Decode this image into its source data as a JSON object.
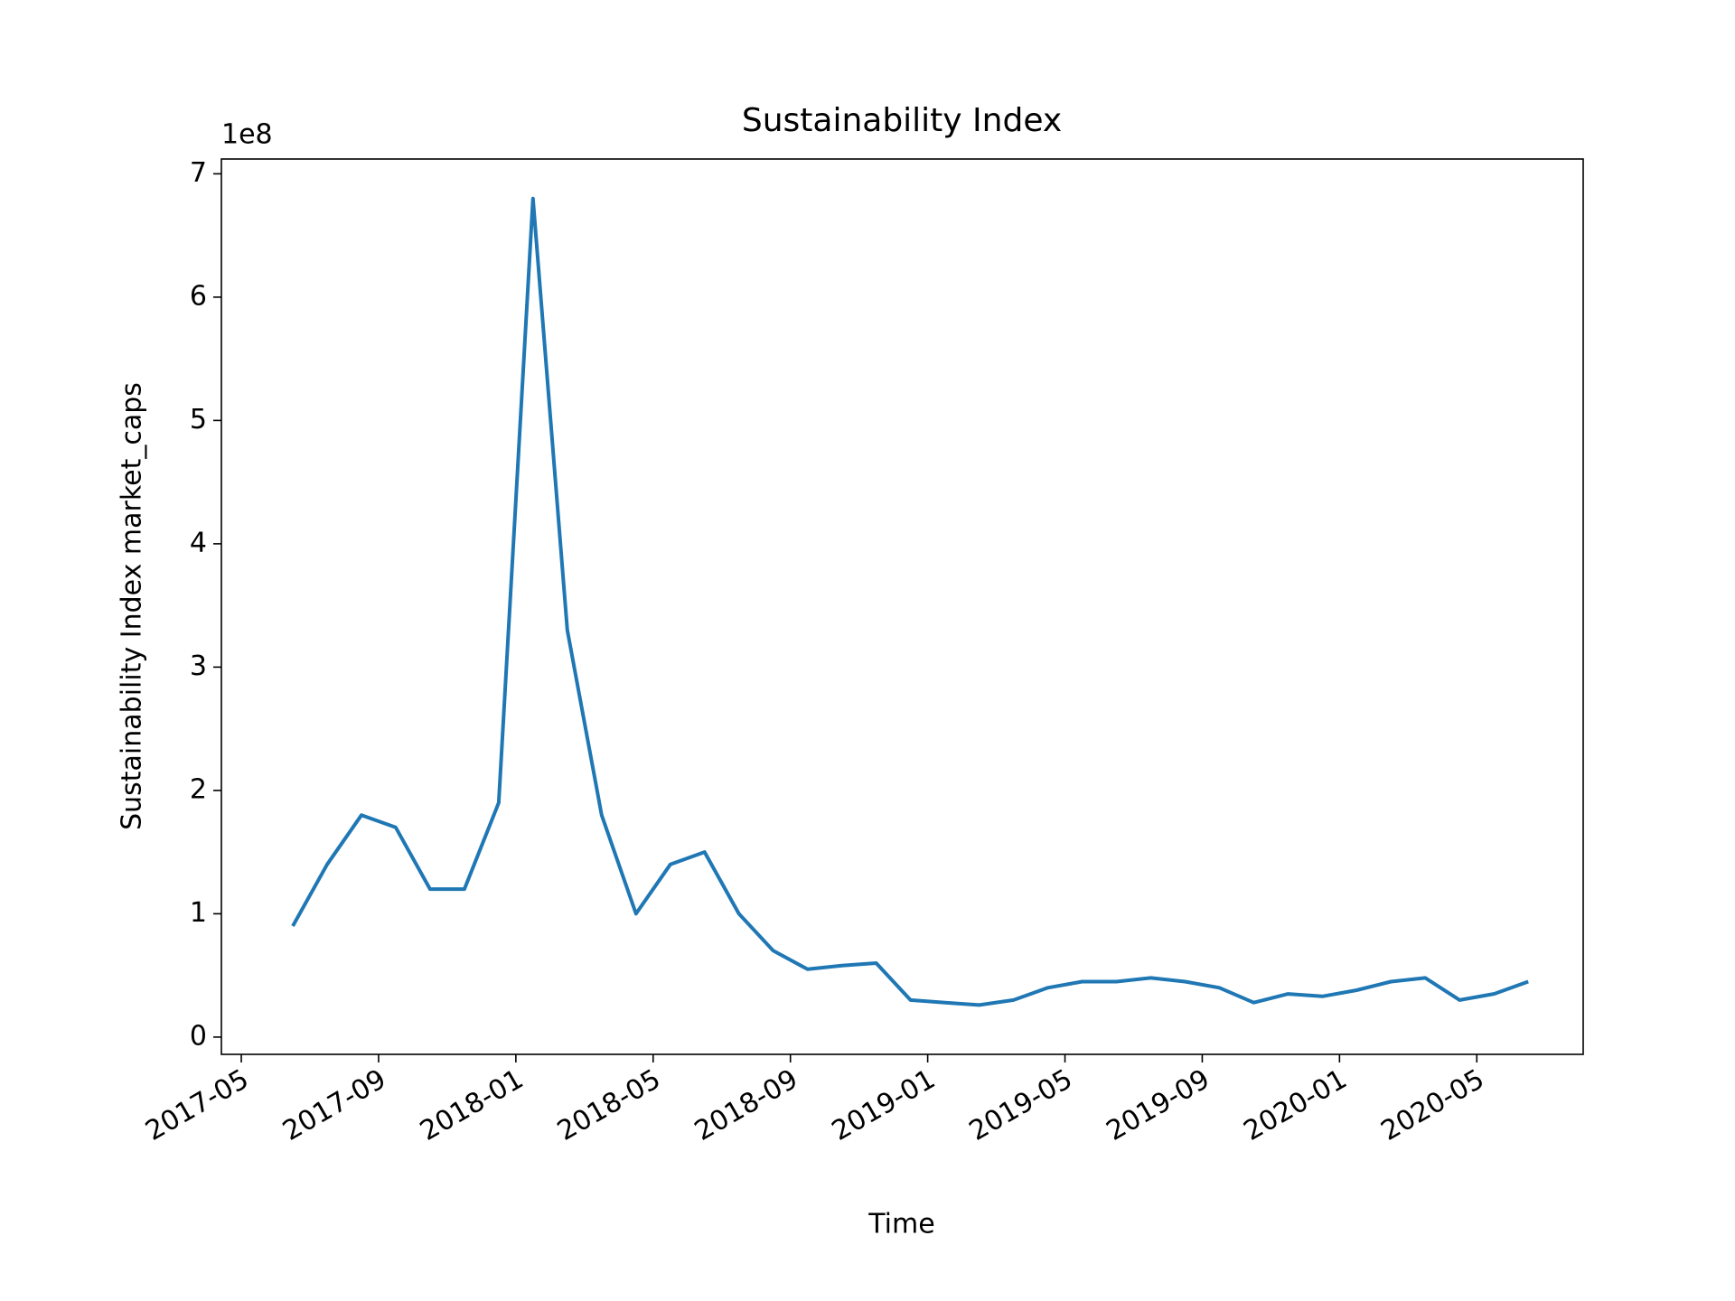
{
  "chart_data": {
    "type": "line",
    "title": "Sustainability Index",
    "x_label": "Time",
    "y_label": "Sustainability Index market_caps",
    "y_offset_label": "1e8",
    "x": [
      "2017-06",
      "2017-07",
      "2017-08",
      "2017-09",
      "2017-10",
      "2017-11",
      "2017-12",
      "2018-01",
      "2018-02",
      "2018-03",
      "2018-04",
      "2018-05",
      "2018-06",
      "2018-07",
      "2018-08",
      "2018-09",
      "2018-10",
      "2018-11",
      "2018-12",
      "2019-01",
      "2019-02",
      "2019-03",
      "2019-04",
      "2019-05",
      "2019-06",
      "2019-07",
      "2019-08",
      "2019-09",
      "2019-10",
      "2019-11",
      "2019-12",
      "2020-01",
      "2020-02",
      "2020-03",
      "2020-04",
      "2020-05",
      "2020-06"
    ],
    "series": [
      {
        "name": "Sustainability Index",
        "color": "#1f77b4",
        "values": [
          90000000,
          140000000,
          180000000,
          170000000,
          120000000,
          120000000,
          190000000,
          680000000,
          330000000,
          180000000,
          100000000,
          140000000,
          150000000,
          100000000,
          70000000,
          55000000,
          58000000,
          60000000,
          30000000,
          28000000,
          26000000,
          30000000,
          40000000,
          45000000,
          45000000,
          48000000,
          45000000,
          40000000,
          28000000,
          35000000,
          33000000,
          38000000,
          45000000,
          48000000,
          30000000,
          35000000,
          45000000
        ]
      }
    ],
    "xlim": [
      "2017-04",
      "2020-08"
    ],
    "xticks": [
      "2017-05",
      "2017-09",
      "2018-01",
      "2018-05",
      "2018-09",
      "2019-01",
      "2019-05",
      "2019-09",
      "2020-01",
      "2020-05"
    ],
    "ylim": [
      -14000000,
      712000000
    ],
    "yticks": [
      {
        "value": 0,
        "label": "0"
      },
      {
        "value": 100000000,
        "label": "1"
      },
      {
        "value": 200000000,
        "label": "2"
      },
      {
        "value": 300000000,
        "label": "3"
      },
      {
        "value": 400000000,
        "label": "4"
      },
      {
        "value": 500000000,
        "label": "5"
      },
      {
        "value": 600000000,
        "label": "6"
      },
      {
        "value": 700000000,
        "label": "7"
      }
    ],
    "grid": false
  }
}
